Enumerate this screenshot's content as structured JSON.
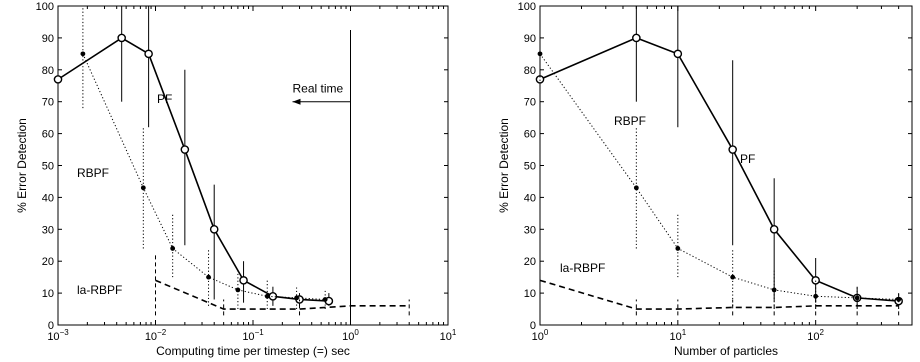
{
  "chart_data": [
    {
      "type": "line",
      "x_scale": "log",
      "xlim": [
        0.001,
        10
      ],
      "ylim": [
        0,
        100
      ],
      "xlabel": "Computing time per timestep (=) sec",
      "ylabel": "% Error Detection",
      "x_ticks": [
        {
          "value": 0.001,
          "base": "10",
          "exp": "−3"
        },
        {
          "value": 0.01,
          "base": "10",
          "exp": "−2"
        },
        {
          "value": 0.1,
          "base": "10",
          "exp": "−1"
        },
        {
          "value": 1,
          "base": "10",
          "exp": "0"
        },
        {
          "value": 10,
          "base": "10",
          "exp": "1"
        }
      ],
      "y_ticks": [
        "0",
        "10",
        "20",
        "30",
        "40",
        "50",
        "60",
        "70",
        "80",
        "90",
        "100"
      ],
      "grid": false,
      "series": [
        {
          "name": "PF",
          "style": "solid",
          "marker": "circle",
          "x": [
            0.001,
            0.0045,
            0.0085,
            0.02,
            0.04,
            0.08,
            0.16,
            0.3,
            0.6
          ],
          "y": [
            77,
            90,
            85,
            55,
            30,
            14,
            9,
            8,
            7.5
          ],
          "err_low": [
            54,
            70,
            62,
            25,
            8,
            7,
            6,
            6,
            6
          ],
          "err_high": [
            100,
            100,
            100,
            80,
            44,
            20,
            12,
            10,
            10
          ]
        },
        {
          "name": "RBPF",
          "style": "dotted",
          "marker": "dot",
          "x": [
            0.0018,
            0.0075,
            0.015,
            0.035,
            0.07,
            0.14,
            0.28,
            0.55
          ],
          "y": [
            85,
            43,
            24,
            15,
            11,
            9,
            8.5,
            8
          ],
          "err_low": [
            68,
            24,
            15,
            6,
            5,
            5,
            5,
            5
          ],
          "err_high": [
            100,
            62,
            35,
            24,
            17,
            14,
            12,
            11
          ]
        },
        {
          "name": "la-RBPF",
          "style": "dashed",
          "marker": "none",
          "x": [
            0.01,
            0.05,
            0.3,
            1,
            4
          ],
          "y": [
            14,
            5,
            5,
            6,
            6
          ],
          "err_low": [
            3,
            3,
            3,
            3,
            3
          ],
          "err_high": [
            22,
            8,
            8,
            8,
            8
          ]
        }
      ],
      "annotations": [
        {
          "text": "Real time",
          "x": 1,
          "type": "vertical-line-with-arrow"
        }
      ]
    },
    {
      "type": "line",
      "x_scale": "log",
      "xlim": [
        1,
        500
      ],
      "ylim": [
        0,
        100
      ],
      "xlabel": "Number of particles",
      "ylabel": "% Error Detection",
      "x_ticks": [
        {
          "value": 1,
          "base": "10",
          "exp": "0"
        },
        {
          "value": 10,
          "base": "10",
          "exp": "1"
        },
        {
          "value": 100,
          "base": "10",
          "exp": "2"
        }
      ],
      "y_ticks": [
        "0",
        "10",
        "20",
        "30",
        "40",
        "50",
        "60",
        "70",
        "80",
        "90",
        "100"
      ],
      "grid": false,
      "series": [
        {
          "name": "PF",
          "style": "solid",
          "marker": "circle",
          "x": [
            1,
            5,
            10,
            25,
            50,
            100,
            200,
            400
          ],
          "y": [
            77,
            90,
            85,
            55,
            30,
            14,
            8.5,
            7.5
          ],
          "err_low": [
            54,
            70,
            62,
            25,
            8,
            7,
            6,
            6
          ],
          "err_high": [
            100,
            100,
            100,
            83,
            46,
            21,
            12,
            10
          ]
        },
        {
          "name": "RBPF",
          "style": "dotted",
          "marker": "dot",
          "x": [
            1,
            5,
            10,
            25,
            50,
            100,
            200,
            400
          ],
          "y": [
            85,
            43,
            24,
            15,
            11,
            9,
            8.5,
            8
          ],
          "err_low": [
            68,
            24,
            15,
            6,
            5,
            5,
            5,
            5
          ],
          "err_high": [
            100,
            62,
            35,
            24,
            17,
            14,
            12,
            10
          ]
        },
        {
          "name": "la-RBPF",
          "style": "dashed",
          "marker": "none",
          "x": [
            1,
            5,
            10,
            25,
            50,
            100,
            200,
            400
          ],
          "y": [
            14,
            5,
            5,
            5.5,
            5.5,
            6,
            6,
            6
          ],
          "err_low": [
            3,
            3,
            3,
            3,
            3,
            3,
            3,
            3
          ],
          "err_high": [
            23,
            8,
            8,
            8,
            8,
            8,
            8,
            8
          ]
        }
      ]
    }
  ]
}
